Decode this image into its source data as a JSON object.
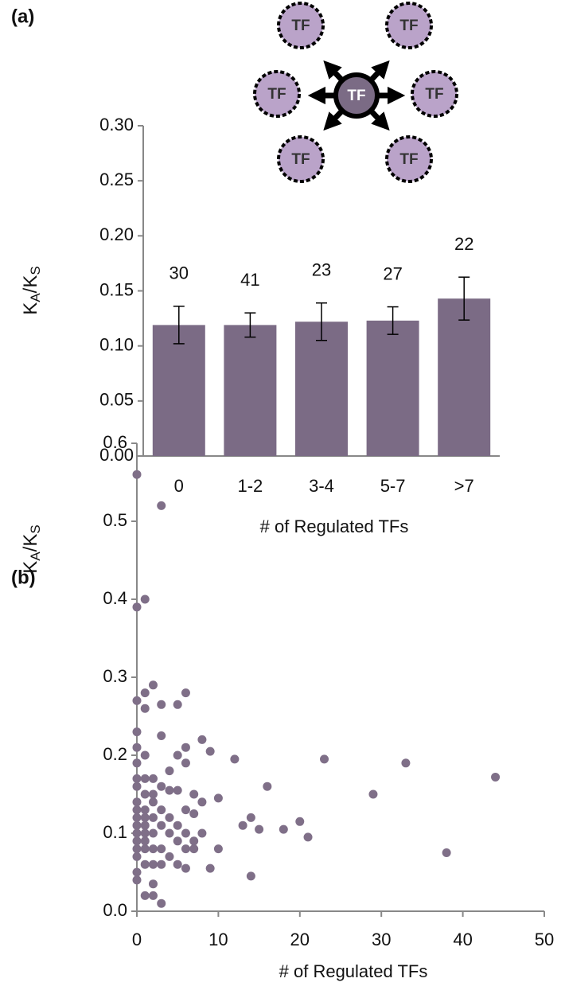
{
  "chart_data": [
    {
      "type": "bar",
      "panel_label": "(a)",
      "diagram": {
        "center": "TF",
        "nodes": [
          "TF",
          "TF",
          "TF",
          "TF",
          "TF",
          "TF"
        ]
      },
      "categories": [
        "0",
        "1-2",
        "3-4",
        "5-7",
        ">7"
      ],
      "values": [
        0.119,
        0.119,
        0.122,
        0.123,
        0.143
      ],
      "errors": [
        0.017,
        0.011,
        0.017,
        0.0125,
        0.0195
      ],
      "counts": [
        30,
        41,
        23,
        27,
        22
      ],
      "color": "#7b6b85",
      "ylim": [
        0,
        0.3
      ],
      "yticks": [
        {
          "value": 0,
          "label": "0.00"
        },
        0.05,
        {
          "value": 0.1,
          "label": "0.10"
        },
        0.15,
        {
          "value": 0.2,
          "label": "0.20"
        },
        0.25,
        {
          "value": 0.3,
          "label": "0.30"
        }
      ],
      "ylabel": {
        "parts": [
          "K",
          "A",
          "/K",
          "S"
        ],
        "subscript": [
          false,
          true,
          false,
          true
        ]
      },
      "xlabel": "# of Regulated TFs"
    },
    {
      "type": "scatter",
      "panel_label": "(b)",
      "x": [
        0,
        0,
        0,
        0,
        0,
        0,
        0,
        0,
        0,
        0,
        0,
        0,
        0,
        0,
        0,
        0,
        0,
        0,
        1,
        1,
        1,
        1,
        1,
        1,
        1,
        1,
        1,
        1,
        1,
        1,
        1,
        1,
        2,
        2,
        2,
        2,
        2,
        2,
        2,
        2,
        2,
        2,
        3,
        3,
        3,
        3,
        3,
        3,
        3,
        3,
        3,
        4,
        4,
        4,
        4,
        4,
        5,
        5,
        5,
        5,
        5,
        5,
        6,
        6,
        6,
        6,
        6,
        6,
        6,
        7,
        7,
        7,
        7,
        8,
        8,
        8,
        9,
        9,
        10,
        10,
        12,
        13,
        14,
        14,
        15,
        16,
        18,
        20,
        21,
        23,
        29,
        33,
        38,
        44
      ],
      "y": [
        0.56,
        0.39,
        0.27,
        0.23,
        0.21,
        0.19,
        0.17,
        0.16,
        0.14,
        0.13,
        0.12,
        0.11,
        0.1,
        0.09,
        0.08,
        0.07,
        0.05,
        0.04,
        0.4,
        0.28,
        0.26,
        0.2,
        0.17,
        0.15,
        0.13,
        0.12,
        0.11,
        0.1,
        0.09,
        0.08,
        0.06,
        0.02,
        0.29,
        0.17,
        0.15,
        0.14,
        0.12,
        0.1,
        0.08,
        0.06,
        0.035,
        0.02,
        0.52,
        0.265,
        0.225,
        0.16,
        0.13,
        0.11,
        0.08,
        0.06,
        0.01,
        0.18,
        0.155,
        0.12,
        0.1,
        0.07,
        0.265,
        0.2,
        0.155,
        0.11,
        0.09,
        0.06,
        0.28,
        0.21,
        0.19,
        0.13,
        0.1,
        0.08,
        0.055,
        0.15,
        0.125,
        0.09,
        0.08,
        0.22,
        0.14,
        0.1,
        0.205,
        0.055,
        0.145,
        0.08,
        0.195,
        0.11,
        0.12,
        0.045,
        0.105,
        0.16,
        0.105,
        0.115,
        0.095,
        0.195,
        0.15,
        0.19,
        0.075,
        0.172
      ],
      "color": "#7f6f88",
      "xlim": [
        0,
        50
      ],
      "xticks": [
        0,
        10,
        20,
        30,
        40,
        50
      ],
      "ylim": [
        0,
        0.6
      ],
      "yticks": [
        {
          "value": 0,
          "label": "0.0"
        },
        0.1,
        0.2,
        0.3,
        0.4,
        0.5,
        0.6
      ],
      "ylabel": {
        "parts": [
          "K",
          "A",
          "/K",
          "S"
        ],
        "subscript": [
          false,
          true,
          false,
          true
        ]
      },
      "xlabel": "# of Regulated TFs"
    }
  ]
}
